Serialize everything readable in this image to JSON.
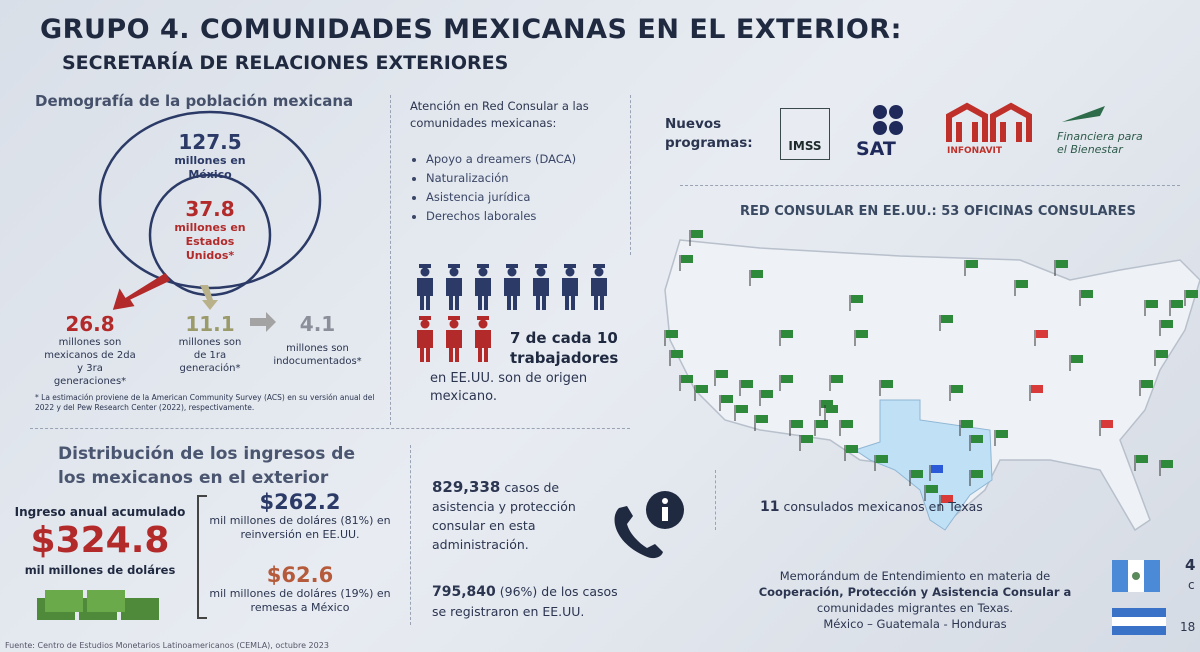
{
  "header": {
    "title": "GRUPO 4. COMUNIDADES MEXICANAS EN EL EXTERIOR:",
    "subtitle": "SECRETARÍA DE RELACIONES EXTERIORES"
  },
  "demography": {
    "title": "Demografía de la población mexicana",
    "total_value": "127.5",
    "total_label": "millones en México",
    "us_value": "37.8",
    "us_label": "millones en Estados Unidos*",
    "items": [
      {
        "value": "26.8",
        "label": "millones son mexicanos de 2da y 3ra generaciones*"
      },
      {
        "value": "11.1",
        "label": "millones son de 1ra generación*"
      },
      {
        "value": "4.1",
        "label": "millones son indocumentados*"
      }
    ],
    "note": "* La estimación proviene de la American Community Survey (ACS) en su versión anual del 2022 y del Pew Research Center (2022), respectivamente."
  },
  "consular": {
    "title": "Atención en Red Consular a las comunidades mexicanas:",
    "services": [
      "Apoyo a dreamers (DACA)",
      "Naturalización",
      "Asistencia jurídica",
      "Derechos laborales"
    ],
    "workers_stat": "7 de cada 10 trabajadores",
    "workers_text": "en EE.UU. son de origen mexicano."
  },
  "programs": {
    "label": "Nuevos programas:",
    "logos": [
      "IMSS",
      "SAT",
      "INFONAVIT",
      "Financiera para el Bienestar"
    ]
  },
  "map": {
    "title": "RED CONSULAR EN EE.UU.: 53 OFICINAS CONSULARES",
    "texas_value": "11",
    "texas_label": "consulados mexicanos en Texas",
    "memo_line1": "Memorándum de Entendimiento en materia de",
    "memo_line2": "Cooperación, Protección y Asistencia Consular a",
    "memo_line3": "comunidades migrantes en Texas.",
    "memo_line4": "México – Guatemala - Honduras",
    "edge_1": "4",
    "edge_2": "c",
    "edge_3": "18"
  },
  "income": {
    "title": "Distribución de los ingresos de los mexicanos en el exterior",
    "annual_label": "Ingreso anual acumulado",
    "annual_value": "$324.8",
    "annual_unit": "mil millones de doláres",
    "items": [
      {
        "value": "$262.2",
        "label": "mil millones de doláres (81%) en reinversión en EE.UU."
      },
      {
        "value": "$62.6",
        "label": "mil millones de doláres (19%) en remesas a México"
      }
    ]
  },
  "cases": {
    "value": "829,338",
    "text": "casos de asistencia y protección consular en esta administración.",
    "value2": "795,840",
    "pct": "(96%)",
    "text2": "de los casos se registraron en EE.UU."
  },
  "source": "Fuente: Centro de Estudios Monetarios Latinoamericanos (CEMLA), octubre 2023"
}
